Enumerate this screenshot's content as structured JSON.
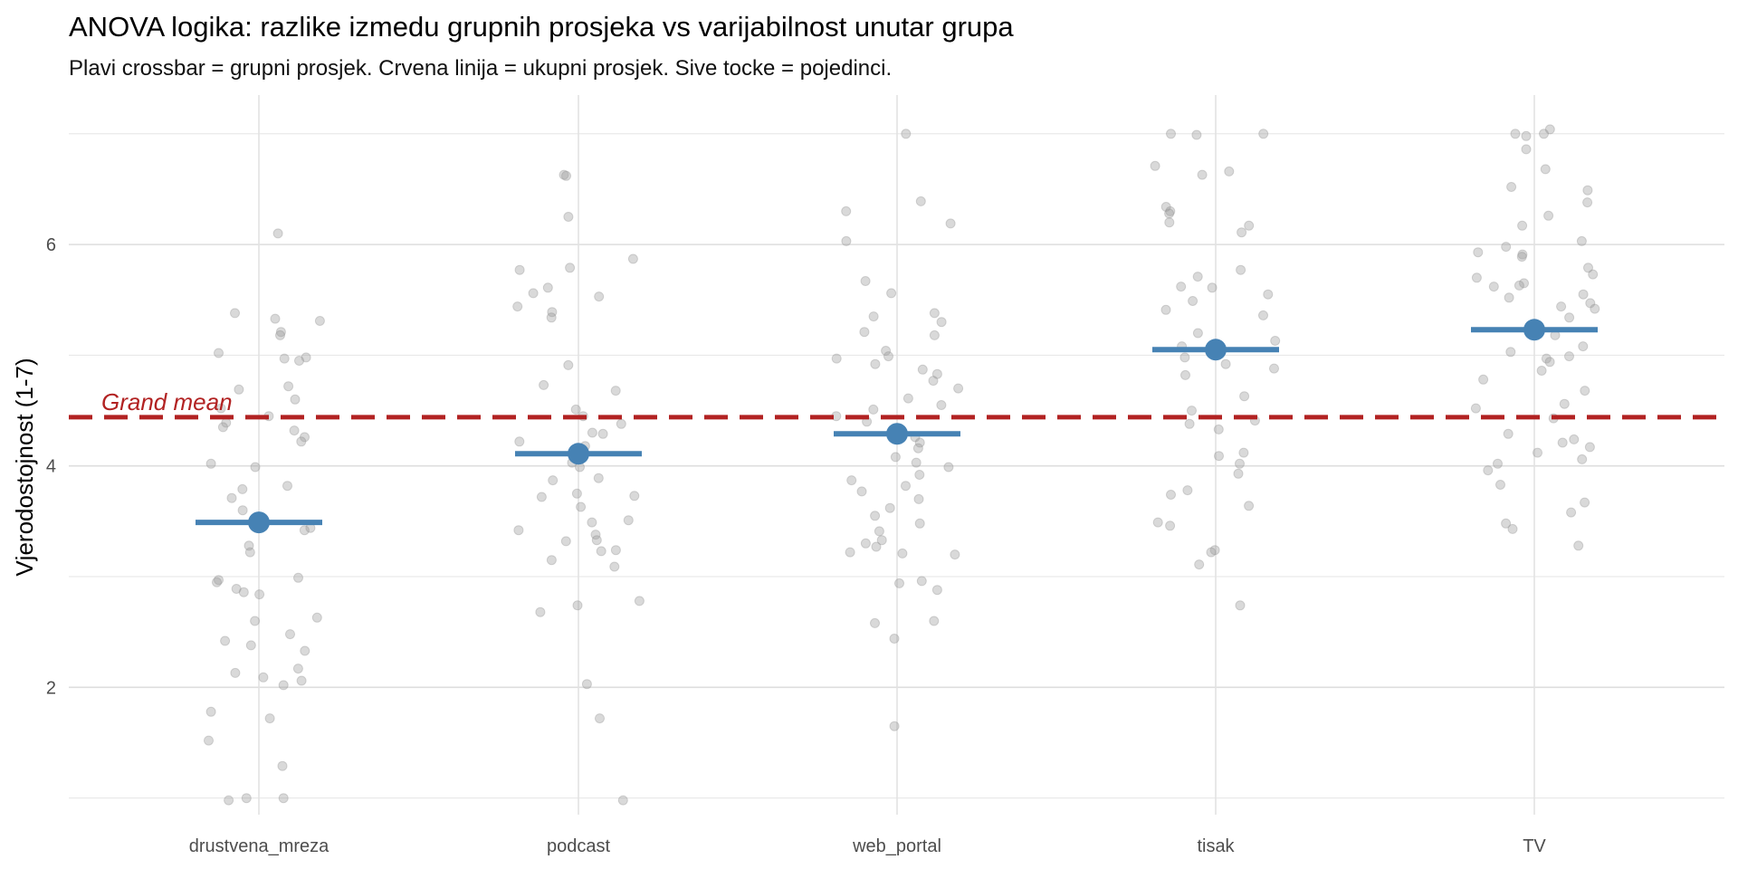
{
  "chart_data": {
    "type": "scatter",
    "title": "ANOVA logika: razlike izmedu grupnih prosjeka vs varijabilnost unutar grupa",
    "subtitle": "Plavi crossbar = grupni prosjek. Crvena linija = ukupni prosjek. Sive tocke = pojedinci.",
    "xlabel": "",
    "ylabel": "Vjerodostojnost (1-7)",
    "categories": [
      "drustvena_mreza",
      "podcast",
      "web_portal",
      "tisak",
      "TV"
    ],
    "ylim": [
      0.85,
      7.35
    ],
    "yticks": [
      2,
      4,
      6
    ],
    "grid": true,
    "group_means": [
      3.49,
      4.11,
      4.29,
      5.05,
      5.23
    ],
    "grand_mean": 4.44,
    "grand_mean_label": "Grand mean",
    "colors": {
      "points": "#9a9a9a",
      "means": "#4682b4",
      "grand_mean": "#b22222",
      "grid": "#e5e5e5"
    },
    "points": [
      [
        6.1,
        5.38,
        5.33,
        5.31,
        5.21,
        5.18,
        5.02,
        4.98,
        4.97,
        4.95,
        4.72,
        4.69,
        4.6,
        4.52,
        4.45,
        4.39,
        4.35,
        4.32,
        4.26,
        4.22,
        4.02,
        3.99,
        3.82,
        3.79,
        3.71,
        3.6,
        3.44,
        3.42,
        3.28,
        3.22,
        2.99,
        2.97,
        2.95,
        2.89,
        2.86,
        2.84,
        2.63,
        2.6,
        2.48,
        2.42,
        2.38,
        2.33,
        2.17,
        2.13,
        2.09,
        2.06,
        2.02,
        1.78,
        1.72,
        1.52,
        1.29,
        1.0,
        1.0,
        0.98
      ],
      [
        6.63,
        6.62,
        6.25,
        5.87,
        5.79,
        5.77,
        5.61,
        5.56,
        5.53,
        5.44,
        5.39,
        5.34,
        4.91,
        4.73,
        4.68,
        4.51,
        4.45,
        4.38,
        4.3,
        4.29,
        4.22,
        4.18,
        4.03,
        3.99,
        3.89,
        3.87,
        3.75,
        3.73,
        3.72,
        3.63,
        3.51,
        3.49,
        3.42,
        3.38,
        3.33,
        3.32,
        3.24,
        3.23,
        3.15,
        3.09,
        2.78,
        2.74,
        2.68,
        2.03,
        1.72,
        0.98
      ],
      [
        7.0,
        6.39,
        6.3,
        6.19,
        6.03,
        5.67,
        5.56,
        5.38,
        5.35,
        5.3,
        5.21,
        5.18,
        5.04,
        4.99,
        4.97,
        4.92,
        4.87,
        4.83,
        4.77,
        4.7,
        4.61,
        4.55,
        4.51,
        4.45,
        4.4,
        4.33,
        4.26,
        4.21,
        4.16,
        4.08,
        4.03,
        3.99,
        3.92,
        3.87,
        3.82,
        3.77,
        3.7,
        3.62,
        3.55,
        3.48,
        3.41,
        3.33,
        3.3,
        3.27,
        3.22,
        3.21,
        3.2,
        2.96,
        2.94,
        2.88,
        2.6,
        2.58,
        2.44,
        1.65
      ],
      [
        7.0,
        7.0,
        6.99,
        6.71,
        6.66,
        6.63,
        6.34,
        6.3,
        6.28,
        6.2,
        6.17,
        6.11,
        5.77,
        5.71,
        5.62,
        5.61,
        5.55,
        5.49,
        5.41,
        5.36,
        5.2,
        5.13,
        5.08,
        4.98,
        4.92,
        4.88,
        4.82,
        4.63,
        4.5,
        4.41,
        4.38,
        4.33,
        4.12,
        4.09,
        4.02,
        3.93,
        3.78,
        3.74,
        3.64,
        3.49,
        3.46,
        3.24,
        3.22,
        3.11,
        2.74
      ],
      [
        7.04,
        7.0,
        7.0,
        6.98,
        6.86,
        6.68,
        6.52,
        6.49,
        6.38,
        6.26,
        6.17,
        6.03,
        5.98,
        5.93,
        5.91,
        5.89,
        5.79,
        5.73,
        5.7,
        5.65,
        5.63,
        5.62,
        5.55,
        5.52,
        5.47,
        5.44,
        5.42,
        5.34,
        5.2,
        5.18,
        5.08,
        5.03,
        4.99,
        4.97,
        4.94,
        4.86,
        4.78,
        4.68,
        4.56,
        4.52,
        4.43,
        4.29,
        4.24,
        4.21,
        4.17,
        4.12,
        4.06,
        4.02,
        3.96,
        3.83,
        3.67,
        3.58,
        3.48,
        3.43,
        3.28
      ]
    ]
  }
}
